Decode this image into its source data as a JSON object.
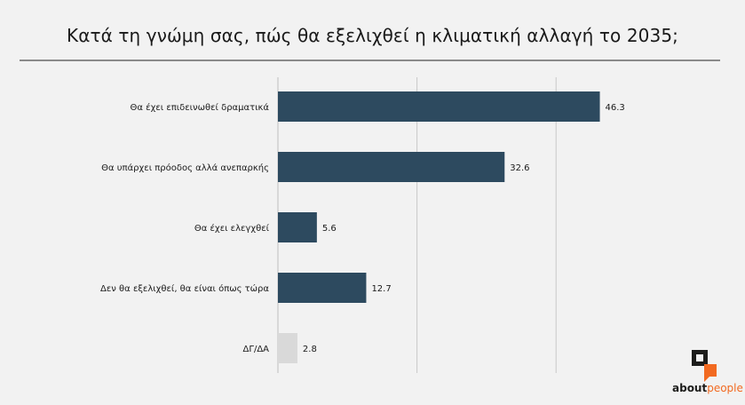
{
  "chart_data": {
    "type": "bar",
    "orientation": "horizontal",
    "title": "Κατά τη γνώμη σας, πώς θα εξελιχθεί η κλιματική αλλαγή το 2035;",
    "categories": [
      "Θα έχει επιδεινωθεί δραματικά",
      "Θα υπάρχει πρόοδος αλλά ανεπαρκής",
      "Θα έχει ελεγχθεί",
      "Δεν θα εξελιχθεί, θα είναι όπως τώρα",
      "ΔΓ/ΔΑ"
    ],
    "values": [
      46.3,
      32.6,
      5.6,
      12.7,
      2.8
    ],
    "value_labels": [
      "46.3",
      "32.6",
      "5.6",
      "12.7",
      "2.8"
    ],
    "xlim": [
      0,
      60
    ],
    "grid": true,
    "colors": {
      "bar": "#2d4a5f",
      "bar_muted": "#d9d9d9",
      "grid": "#c8c8c8"
    }
  },
  "brand": {
    "name_bold": "about",
    "name_light": "people",
    "accent": "#f26a21"
  }
}
